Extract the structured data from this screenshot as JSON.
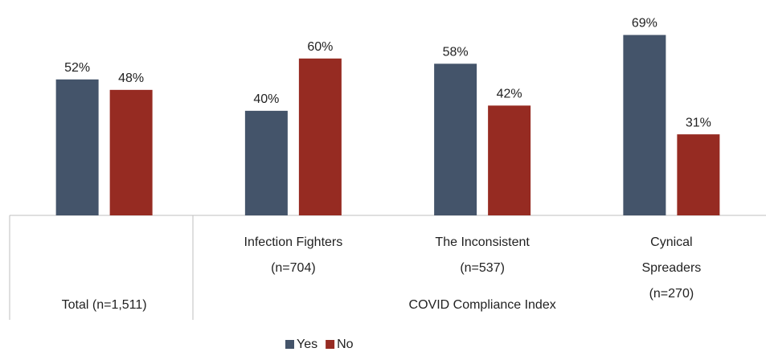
{
  "chart_data": {
    "type": "bar",
    "categories": [
      "Total (n=1,511)",
      "Infection Fighters\n(n=704)",
      "The Inconsistent\n(n=537)",
      "Cynical Spreaders\n(n=270)"
    ],
    "group_label": "COVID Compliance Index",
    "series": [
      {
        "name": "Yes",
        "color": "#44546a",
        "values": [
          52,
          40,
          58,
          69
        ],
        "value_labels": [
          "52%",
          "40%",
          "58%",
          "69%"
        ]
      },
      {
        "name": "No",
        "color": "#962b22",
        "values": [
          48,
          60,
          42,
          31
        ],
        "value_labels": [
          "48%",
          "60%",
          "42%",
          "31%"
        ]
      }
    ],
    "ylim": [
      0,
      75
    ],
    "legend": "bottom"
  }
}
